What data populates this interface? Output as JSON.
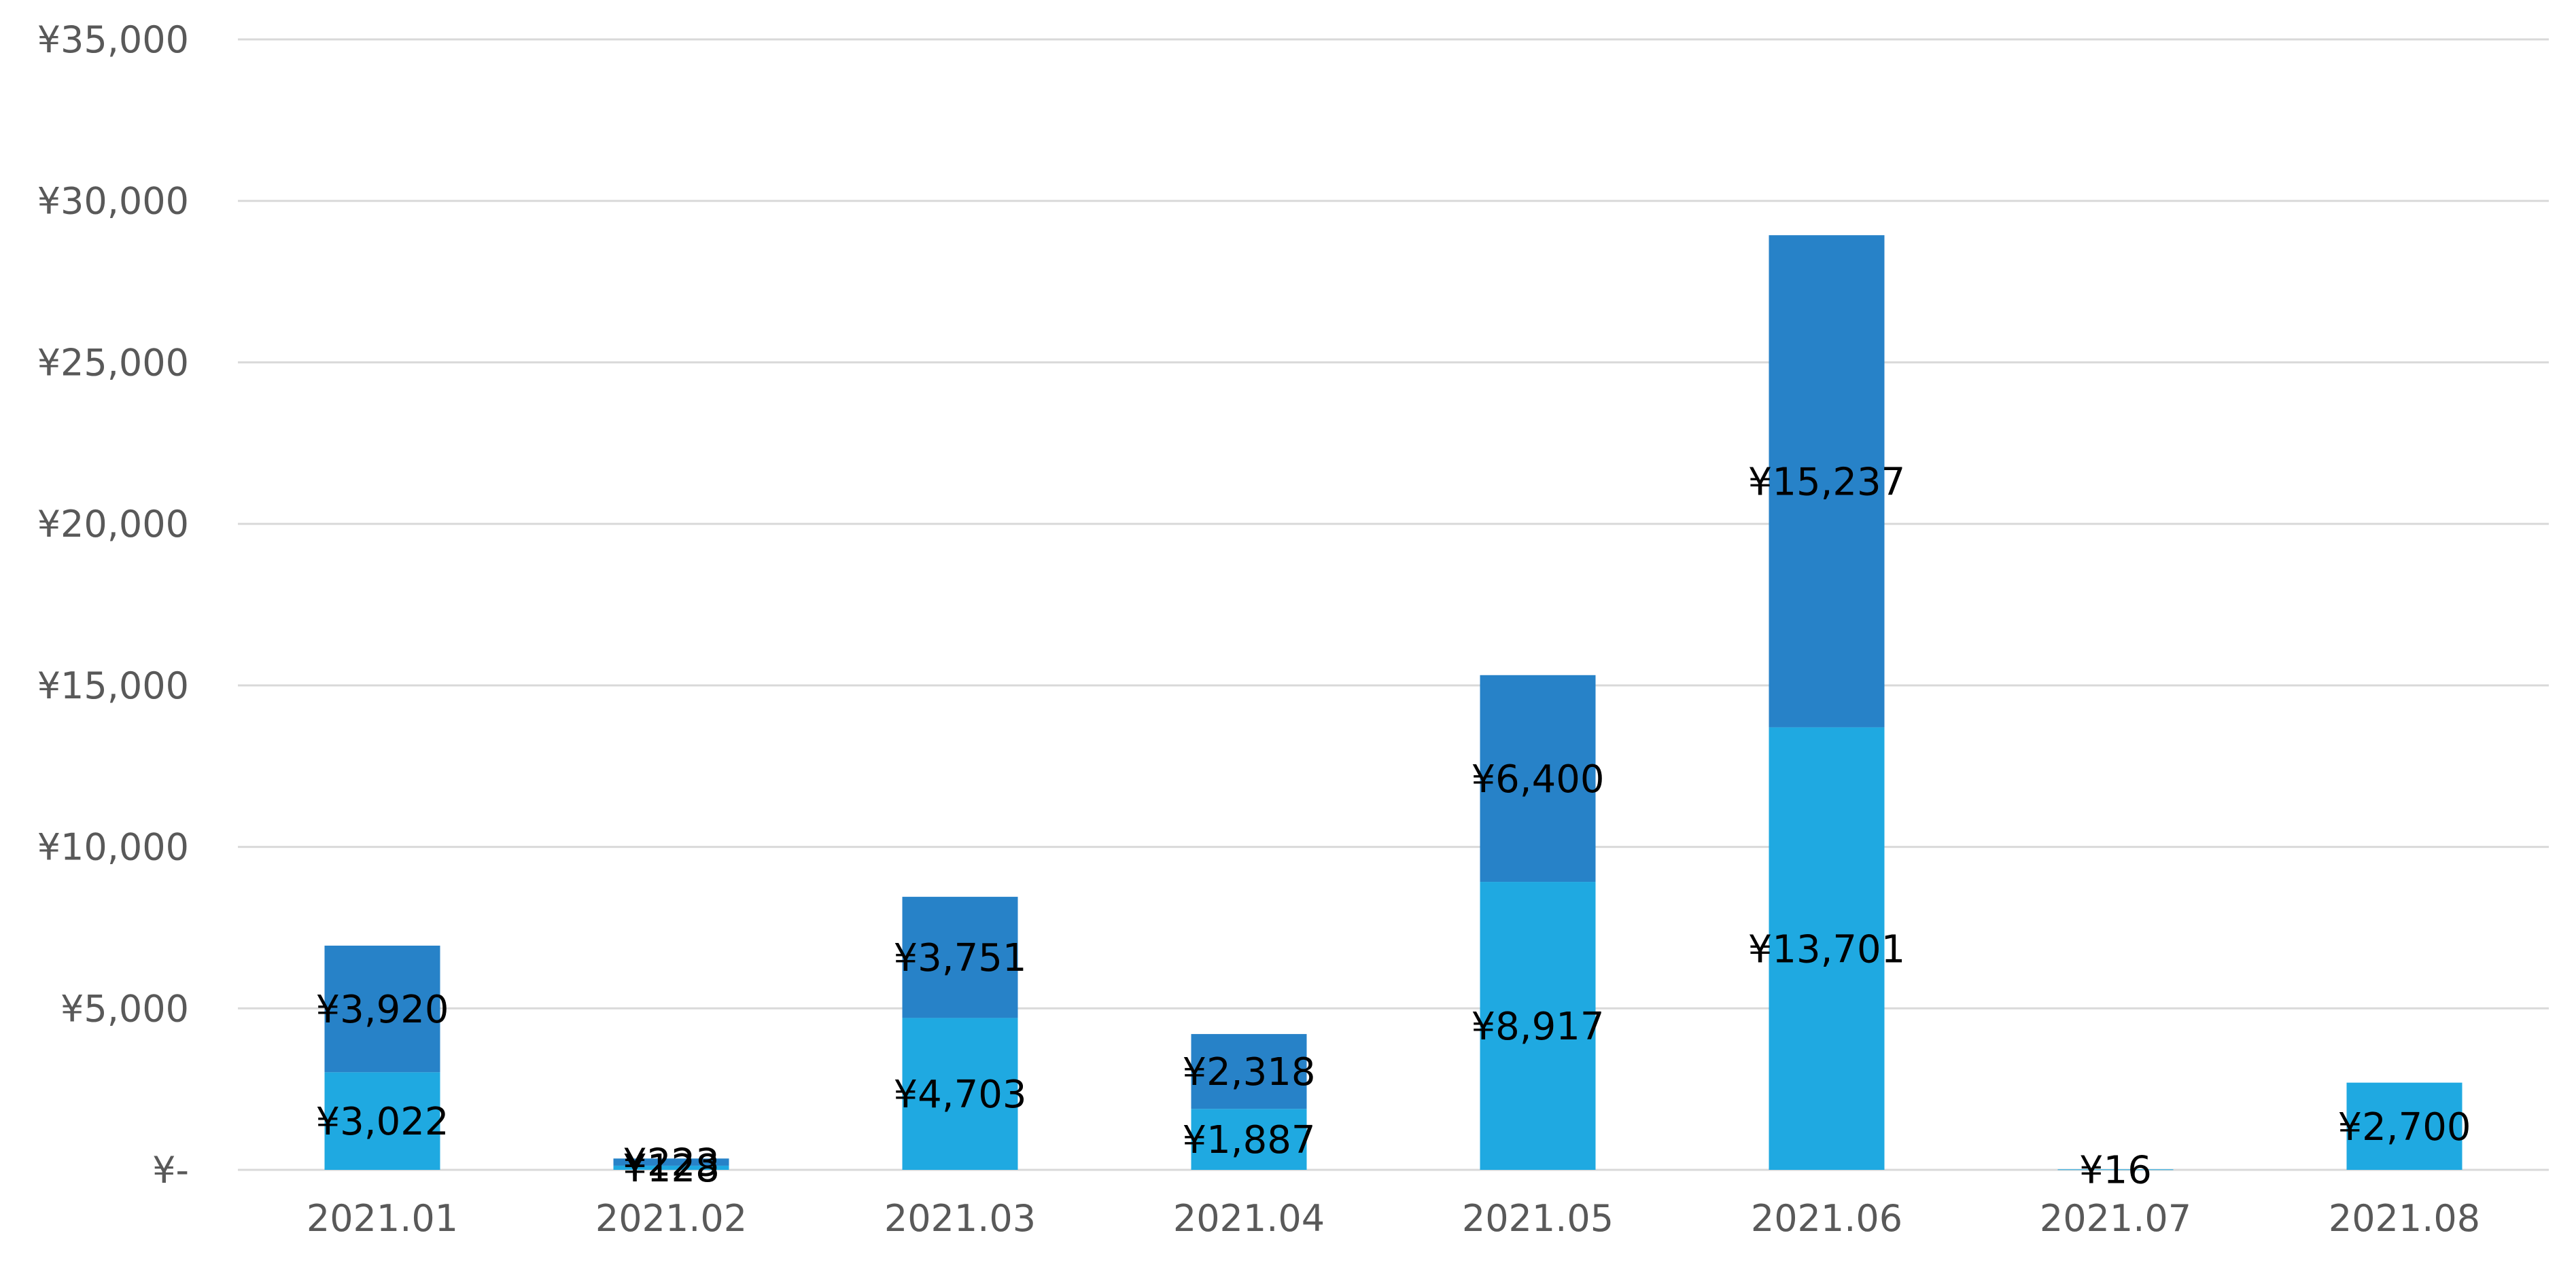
{
  "chart_data": {
    "type": "bar",
    "stacked": true,
    "categories": [
      "2021.01",
      "2021.02",
      "2021.03",
      "2021.04",
      "2021.05",
      "2021.06",
      "2021.07",
      "2021.08"
    ],
    "series": [
      {
        "values": [
          3022,
          128,
          4703,
          1887,
          8917,
          13701,
          16,
          2700
        ],
        "labels": [
          "¥3,022",
          "¥128",
          "¥4,703",
          "¥1,887",
          "¥8,917",
          "¥13,701",
          "¥16",
          "¥2,700"
        ],
        "color": "#1fa9e1"
      },
      {
        "values": [
          3920,
          223,
          3751,
          2318,
          6400,
          15237,
          0,
          0
        ],
        "labels": [
          "¥3,920",
          "¥223",
          "¥3,751",
          "¥2,318",
          "¥6,400",
          "¥15,237",
          "",
          ""
        ],
        "color": "#2782c8"
      }
    ],
    "ylim": [
      0,
      35000
    ],
    "yticks": [
      0,
      5000,
      10000,
      15000,
      20000,
      25000,
      30000,
      35000
    ],
    "ytick_labels": [
      "¥-",
      "¥5,000",
      "¥10,000",
      "¥15,000",
      "¥20,000",
      "¥25,000",
      "¥30,000",
      "¥35,000"
    ],
    "title": "",
    "xlabel": "",
    "ylabel": "",
    "grid": true,
    "legend": "none"
  }
}
